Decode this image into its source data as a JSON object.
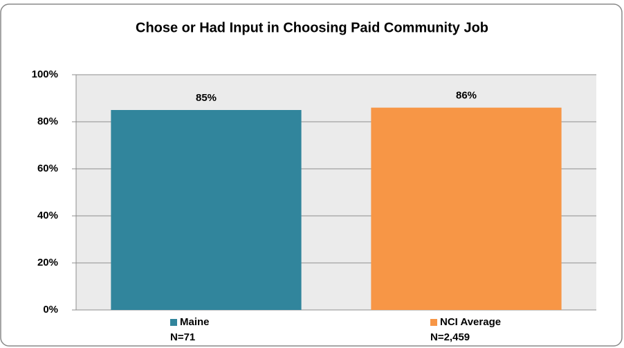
{
  "chart_data": {
    "type": "bar",
    "title": "Chose or Had Input in Choosing Paid Community Job",
    "categories": [
      "Maine",
      "NCI Average"
    ],
    "sample_sizes": [
      "N=71",
      "N=2,459"
    ],
    "values": [
      85,
      86
    ],
    "value_labels": [
      "85%",
      "86%"
    ],
    "colors": [
      "#31859c",
      "#f79646"
    ],
    "ylim": [
      0,
      100
    ],
    "yticks": [
      {
        "value": 0,
        "label": "0%"
      },
      {
        "value": 20,
        "label": "20%"
      },
      {
        "value": 40,
        "label": "40%"
      },
      {
        "value": 60,
        "label": "60%"
      },
      {
        "value": 80,
        "label": "80%"
      },
      {
        "value": 100,
        "label": "100%"
      }
    ],
    "grid": true
  }
}
